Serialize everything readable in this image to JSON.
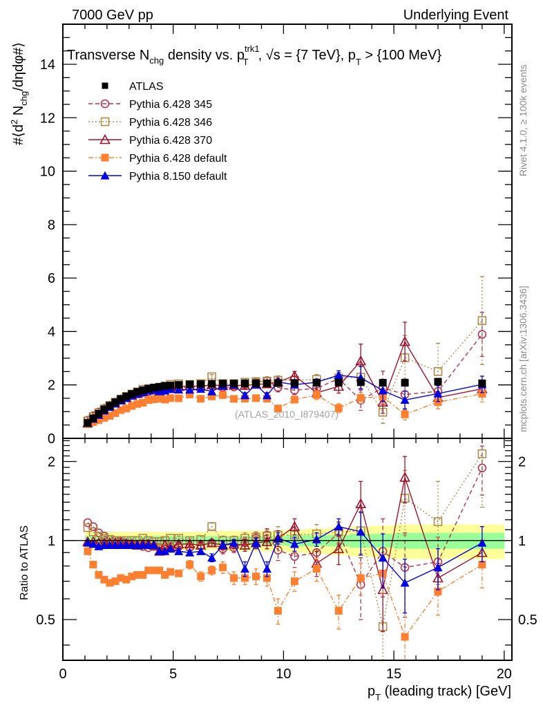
{
  "header": {
    "left": "7000 GeV pp",
    "right": "Underlying Event"
  },
  "side_labels": {
    "rivet": "Rivet 4.1.0, ≥ 100k events",
    "mcplots": "mcplots.cern.ch [arXiv:1306.3436]"
  },
  "chart_data": {
    "type": "scatter",
    "title": "Transverse N_chg density vs. p_T^trk1, √s = {7 TeV}, p_T > {100 MeV}",
    "title_parts": {
      "a": "Transverse N",
      "a_sub": "chg",
      "b": " density vs. p",
      "b_sup": "trk1",
      "b_sub": "T",
      "c": ", √s = {7 TeV}, p",
      "c_sub": "T",
      "d": " > {100 MeV}"
    },
    "analysis_tag": "(ATLAS_2010_I879407)",
    "xlabel": "p_T (leading track) [GeV]",
    "xlabel_parts": {
      "p": "p",
      "sub": "T",
      "rest": " (leading track) [GeV]"
    },
    "ylabel": "#⟨d² N_chg/dηdφ#⟩",
    "ylabel_parts": {
      "a": "#⟨d",
      "sup": "2",
      "b": " N",
      "sub": "chg",
      "c": "/dηdφ#⟩"
    },
    "ratio_ylabel": "Ratio to ATLAS",
    "xlim": [
      0,
      20.35
    ],
    "ylim": [
      0,
      15.5
    ],
    "ratio_ylim": [
      0.35,
      2.45
    ],
    "ratio_scale": "log",
    "x_ticks": [
      0,
      5,
      10,
      15,
      20
    ],
    "x_tick_labels": [
      "0",
      "5",
      "10",
      "15",
      "20"
    ],
    "y_ticks": [
      0,
      2,
      4,
      6,
      8,
      10,
      12,
      14
    ],
    "y_tick_labels": [
      "0",
      "2",
      "4",
      "6",
      "8",
      "10",
      "12",
      "14"
    ],
    "ratio_ticks": [
      0.5,
      1,
      2
    ],
    "ratio_tick_labels": [
      "0.5",
      "1",
      "2"
    ],
    "legend_position": "top-left",
    "x": [
      1.125,
      1.375,
      1.625,
      1.875,
      2.125,
      2.375,
      2.625,
      2.875,
      3.125,
      3.375,
      3.625,
      3.875,
      4.125,
      4.375,
      4.625,
      4.875,
      5.25,
      5.75,
      6.25,
      6.75,
      7.25,
      7.75,
      8.25,
      8.75,
      9.25,
      9.75,
      10.5,
      11.5,
      12.5,
      13.5,
      14.5,
      15.5,
      17,
      19
    ],
    "data": {
      "name": "ATLAS",
      "color": "#000000",
      "marker": "square-filled",
      "y": [
        0.58,
        0.75,
        0.92,
        1.08,
        1.22,
        1.35,
        1.47,
        1.57,
        1.66,
        1.74,
        1.8,
        1.86,
        1.9,
        1.93,
        1.96,
        1.98,
        2.0,
        2.02,
        2.03,
        2.04,
        2.05,
        2.05,
        2.06,
        2.06,
        2.06,
        2.07,
        2.07,
        2.08,
        2.09,
        2.1,
        2.08,
        2.08,
        2.12,
        2.06
      ],
      "band_stat": [
        0.04,
        0.04,
        0.04,
        0.04,
        0.04,
        0.04,
        0.04,
        0.04,
        0.04,
        0.04,
        0.04,
        0.04,
        0.04,
        0.04,
        0.04,
        0.04,
        0.04,
        0.04,
        0.04,
        0.04,
        0.04,
        0.04,
        0.04,
        0.04,
        0.04,
        0.04,
        0.05,
        0.05,
        0.05,
        0.06,
        0.06,
        0.07,
        0.07,
        0.07
      ],
      "band_total": [
        0.09,
        0.08,
        0.08,
        0.08,
        0.08,
        0.08,
        0.08,
        0.08,
        0.08,
        0.08,
        0.08,
        0.08,
        0.08,
        0.08,
        0.08,
        0.08,
        0.08,
        0.08,
        0.08,
        0.08,
        0.09,
        0.09,
        0.09,
        0.09,
        0.09,
        0.09,
        0.1,
        0.11,
        0.12,
        0.13,
        0.14,
        0.15,
        0.15,
        0.15
      ]
    },
    "series": [
      {
        "name": "Pythia 6.428 345",
        "color": "#b23050",
        "marker": "circle-open",
        "line": "dashed",
        "ratio": [
          1.17,
          1.13,
          1.07,
          1.04,
          1.01,
          1.0,
          0.99,
          0.98,
          0.97,
          0.96,
          0.95,
          0.94,
          0.95,
          0.94,
          0.94,
          0.95,
          0.95,
          0.94,
          0.96,
          0.98,
          0.93,
          0.94,
          0.98,
          1.02,
          1.05,
          0.92,
          0.87,
          0.9,
          1.07,
          0.68,
          0.91,
          0.79,
          0.83,
          1.89
        ],
        "ratio_err": [
          0.01,
          0.01,
          0.01,
          0.01,
          0.01,
          0.01,
          0.01,
          0.01,
          0.01,
          0.01,
          0.01,
          0.01,
          0.01,
          0.01,
          0.01,
          0.01,
          0.02,
          0.02,
          0.03,
          0.03,
          0.04,
          0.04,
          0.05,
          0.05,
          0.06,
          0.08,
          0.08,
          0.09,
          0.1,
          0.18,
          0.3,
          0.28,
          0.2,
          0.4
        ]
      },
      {
        "name": "Pythia 6.428 346",
        "color": "#b08a4a",
        "marker": "square-open",
        "line": "dotted",
        "ratio": [
          1.12,
          1.08,
          1.04,
          1.02,
          1.01,
          1.0,
          1.0,
          1.0,
          1.0,
          1.0,
          1.02,
          1.0,
          0.99,
          0.99,
          1.0,
          1.02,
          1.02,
          1.0,
          1.01,
          1.13,
          1.0,
          1.0,
          1.02,
          1.03,
          1.04,
          1.05,
          1.05,
          1.06,
          1.08,
          1.09,
          0.47,
          1.45,
          1.18,
          2.14
        ],
        "ratio_err": [
          0.01,
          0.01,
          0.01,
          0.01,
          0.01,
          0.01,
          0.01,
          0.01,
          0.01,
          0.01,
          0.01,
          0.01,
          0.01,
          0.01,
          0.01,
          0.01,
          0.02,
          0.02,
          0.03,
          0.04,
          0.04,
          0.04,
          0.05,
          0.05,
          0.06,
          0.08,
          0.08,
          0.09,
          0.1,
          0.2,
          0.2,
          0.4,
          0.5,
          0.8
        ]
      },
      {
        "name": "Pythia 6.428 370",
        "color": "#a0102a",
        "marker": "triangle-open",
        "line": "solid",
        "ratio": [
          0.99,
          0.99,
          0.98,
          0.98,
          0.98,
          0.98,
          0.98,
          0.97,
          0.97,
          0.96,
          0.97,
          0.97,
          0.96,
          0.91,
          0.96,
          0.94,
          0.97,
          0.97,
          0.96,
          0.98,
          0.96,
          0.97,
          0.96,
          0.98,
          0.99,
          1.02,
          1.13,
          0.82,
          0.93,
          1.38,
          0.65,
          1.74,
          0.72,
          0.9
        ],
        "ratio_err": [
          0.01,
          0.01,
          0.01,
          0.01,
          0.01,
          0.01,
          0.01,
          0.01,
          0.01,
          0.01,
          0.01,
          0.01,
          0.01,
          0.01,
          0.01,
          0.01,
          0.02,
          0.02,
          0.03,
          0.03,
          0.04,
          0.04,
          0.05,
          0.05,
          0.06,
          0.07,
          0.08,
          0.09,
          0.12,
          0.3,
          0.2,
          0.35,
          0.1,
          0.1
        ]
      },
      {
        "name": "Pythia 6.428 default",
        "color": "#ff8030",
        "marker": "square-filled",
        "line": "dashdot",
        "ratio": [
          0.91,
          0.81,
          0.74,
          0.71,
          0.69,
          0.7,
          0.72,
          0.71,
          0.73,
          0.74,
          0.74,
          0.77,
          0.77,
          0.77,
          0.74,
          0.76,
          0.75,
          0.81,
          0.73,
          0.77,
          0.79,
          0.72,
          0.72,
          0.73,
          0.72,
          0.54,
          0.7,
          0.78,
          0.54,
          0.72,
          0.75,
          0.43,
          0.64,
          0.81
        ],
        "ratio_err": [
          0.01,
          0.01,
          0.01,
          0.01,
          0.01,
          0.01,
          0.01,
          0.01,
          0.01,
          0.01,
          0.01,
          0.01,
          0.01,
          0.01,
          0.01,
          0.02,
          0.02,
          0.03,
          0.03,
          0.03,
          0.04,
          0.04,
          0.04,
          0.05,
          0.05,
          0.06,
          0.06,
          0.08,
          0.08,
          0.1,
          0.12,
          0.1,
          0.12,
          0.15
        ]
      },
      {
        "name": "Pythia 8.150 default",
        "color": "#0000e0",
        "marker": "triangle-filled",
        "line": "solid",
        "ratio": [
          0.98,
          0.97,
          0.95,
          0.96,
          0.96,
          0.96,
          0.96,
          0.96,
          0.96,
          0.96,
          0.96,
          0.96,
          0.96,
          0.91,
          0.91,
          0.93,
          0.91,
          0.9,
          0.91,
          0.86,
          0.96,
          0.98,
          0.78,
          0.98,
          0.78,
          1.02,
          0.97,
          1.01,
          1.13,
          1.08,
          0.86,
          0.69,
          0.79,
          0.98
        ],
        "ratio_err": [
          0.01,
          0.01,
          0.01,
          0.01,
          0.01,
          0.01,
          0.01,
          0.01,
          0.01,
          0.01,
          0.01,
          0.01,
          0.01,
          0.01,
          0.01,
          0.01,
          0.02,
          0.02,
          0.02,
          0.03,
          0.03,
          0.03,
          0.05,
          0.04,
          0.05,
          0.05,
          0.06,
          0.06,
          0.08,
          0.2,
          0.2,
          0.16,
          0.14,
          0.15
        ]
      }
    ]
  }
}
